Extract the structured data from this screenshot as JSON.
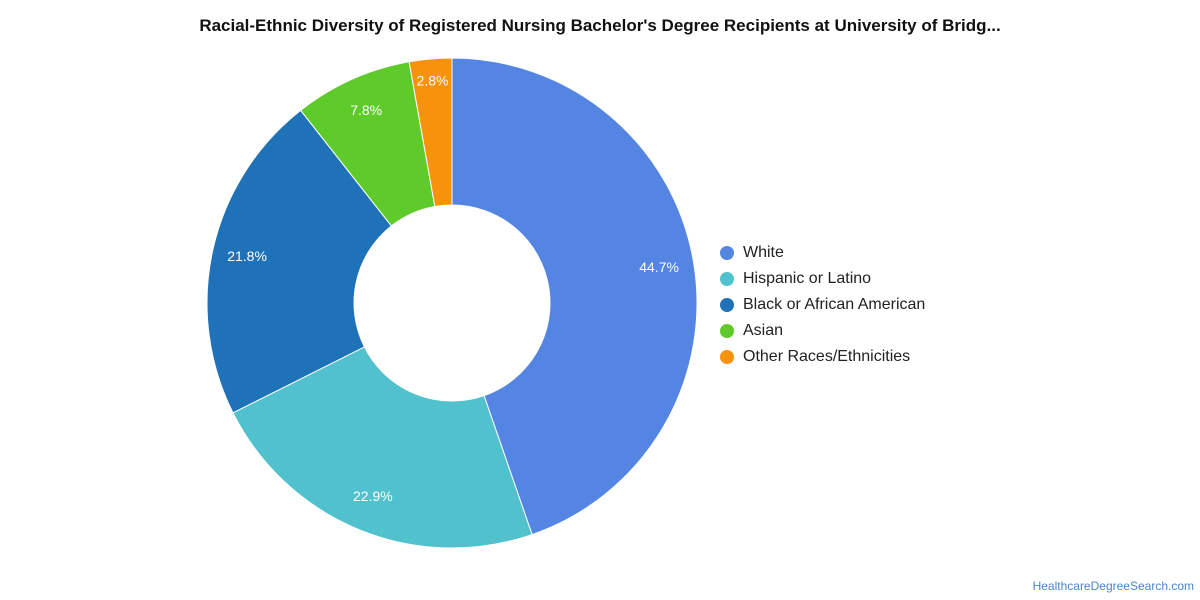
{
  "chart_data": {
    "type": "pie",
    "title": "Racial-Ethnic Diversity of Registered Nursing Bachelor's Degree Recipients at University of Bridg...",
    "donut": true,
    "legend_position": "right",
    "series": [
      {
        "name": "White",
        "value": 44.7,
        "label": "44.7%",
        "color": "#5485e3"
      },
      {
        "name": "Hispanic or Latino",
        "value": 22.9,
        "label": "22.9%",
        "color": "#50c1cd"
      },
      {
        "name": "Black or African American",
        "value": 21.8,
        "label": "21.8%",
        "color": "#1f72b8"
      },
      {
        "name": "Asian",
        "value": 7.8,
        "label": "7.8%",
        "color": "#5fcb2b"
      },
      {
        "name": "Other Races/Ethnicities",
        "value": 2.8,
        "label": "2.8%",
        "color": "#f6920b"
      }
    ]
  },
  "watermark": "HealthcareDegreeSearch.com"
}
